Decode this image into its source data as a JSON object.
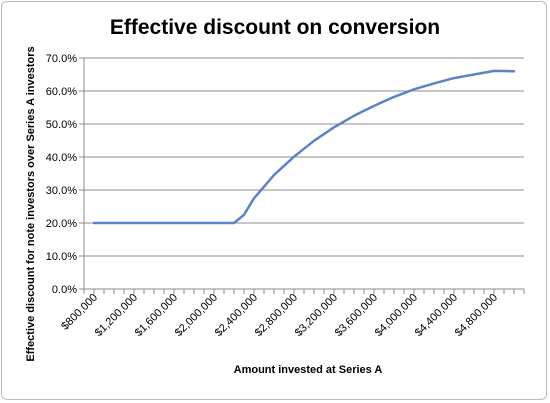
{
  "chart_data": {
    "type": "line",
    "title": "Effective discount on conversion",
    "xlabel": "Amount invested at Series A",
    "ylabel": "Effective discount for note investors over Series A investors",
    "ylim": [
      0,
      70
    ],
    "y_tick_labels": [
      "0.0%",
      "10.0%",
      "20.0%",
      "30.0%",
      "40.0%",
      "50.0%",
      "60.0%",
      "70.0%"
    ],
    "x_tick_values": [
      800000,
      1200000,
      1600000,
      2000000,
      2400000,
      2800000,
      3200000,
      3600000,
      4000000,
      4400000,
      4800000
    ],
    "x_tick_labels": [
      "$800,000",
      "$1,200,000",
      "$1,600,000",
      "$2,000,000",
      "$2,400,000",
      "$2,800,000",
      "$3,200,000",
      "$3,600,000",
      "$4,000,000",
      "$4,400,000",
      "$4,800,000"
    ],
    "grid": "horizontal",
    "line_color": "#5b83c5",
    "series": [
      {
        "x": [
          800000,
          1000000,
          1200000,
          1400000,
          1600000,
          1800000,
          2000000,
          2100000,
          2200000,
          2300000,
          2400000,
          2600000,
          2800000,
          3000000,
          3200000,
          3400000,
          3600000,
          3800000,
          4000000,
          4200000,
          4400000,
          4600000,
          4800000,
          5000000
        ],
        "y": [
          20,
          20,
          20,
          20,
          20,
          20,
          20,
          20,
          20,
          22.5,
          27.5,
          34.5,
          40.1,
          44.9,
          49.0,
          52.5,
          55.5,
          58.2,
          60.5,
          62.3,
          63.9,
          65.0,
          66.1,
          66.0
        ]
      }
    ]
  }
}
